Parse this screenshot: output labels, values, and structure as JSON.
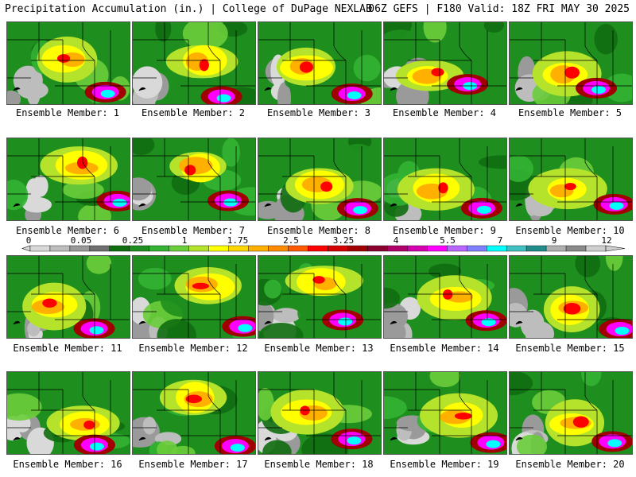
{
  "header": {
    "left": "Precipitation Accumulation (in.) | College of DuPage NEXLAB",
    "right": "06Z GEFS | F180 Valid: 18Z FRI MAY 30 2025"
  },
  "colors": {
    "background": "#ffffff",
    "scale": [
      "#d9d9d9",
      "#bdbdbd",
      "#9a9a9a",
      "#6e6e6e",
      "#0f6d0f",
      "#1e8f1e",
      "#33b233",
      "#6acd3a",
      "#b5e22a",
      "#ffff00",
      "#ffd700",
      "#ffb000",
      "#ff8c00",
      "#ff5a00",
      "#ff0000",
      "#d40000",
      "#a00000",
      "#8b0030",
      "#b0006a",
      "#d400b0",
      "#ff00ff",
      "#b966ff",
      "#7f7fff",
      "#00ffff",
      "#40c0c0",
      "#208c8c",
      "#b0b0b0",
      "#8a8a8a",
      "#cfcfcf"
    ]
  },
  "colorbar": {
    "ticks": [
      "0",
      "0.05",
      "0.25",
      "1",
      "1.75",
      "2.5",
      "3.25",
      "4",
      "5.5",
      "7",
      "9",
      "12"
    ]
  },
  "panels": [
    {
      "label": "Ensemble Member: 1"
    },
    {
      "label": "Ensemble Member: 2"
    },
    {
      "label": "Ensemble Member: 3"
    },
    {
      "label": "Ensemble Member: 4"
    },
    {
      "label": "Ensemble Member: 5"
    },
    {
      "label": "Ensemble Member: 6"
    },
    {
      "label": "Ensemble Member: 7"
    },
    {
      "label": "Ensemble Member: 8"
    },
    {
      "label": "Ensemble Member: 9"
    },
    {
      "label": "Ensemble Member: 10"
    },
    {
      "label": "Ensemble Member: 11"
    },
    {
      "label": "Ensemble Member: 12"
    },
    {
      "label": "Ensemble Member: 13"
    },
    {
      "label": "Ensemble Member: 14"
    },
    {
      "label": "Ensemble Member: 15"
    },
    {
      "label": "Ensemble Member: 16"
    },
    {
      "label": "Ensemble Member: 17"
    },
    {
      "label": "Ensemble Member: 18"
    },
    {
      "label": "Ensemble Member: 19"
    },
    {
      "label": "Ensemble Member: 20"
    }
  ]
}
